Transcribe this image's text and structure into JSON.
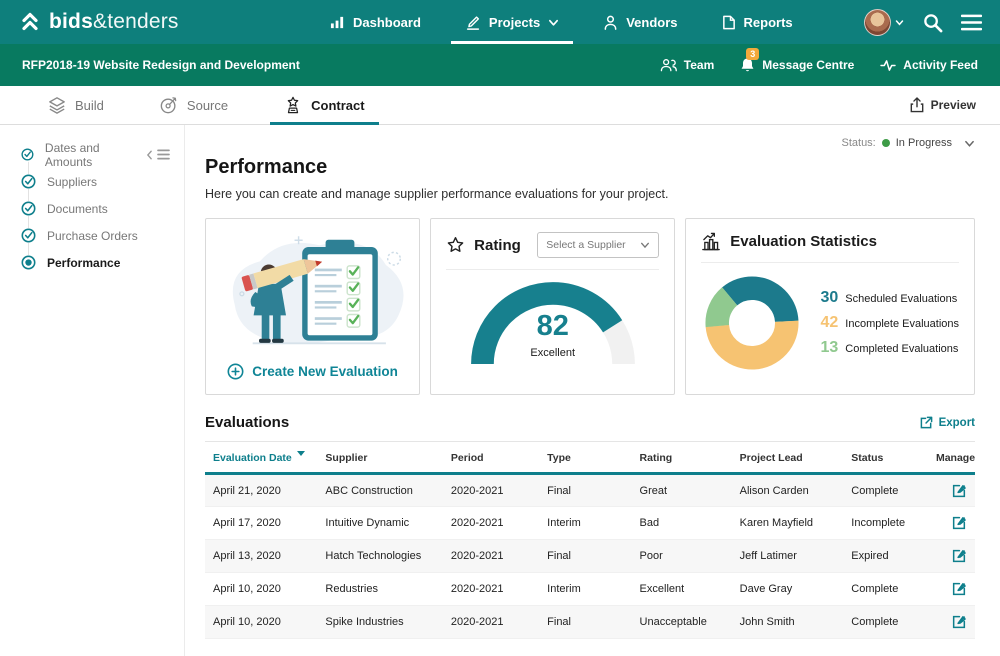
{
  "brand": {
    "name_bold": "bids",
    "name_light": "&tenders"
  },
  "navbar": {
    "items": [
      {
        "label": "Dashboard",
        "icon": "bar-chart-icon",
        "active": false
      },
      {
        "label": "Projects",
        "icon": "pencil-icon",
        "active": true
      },
      {
        "label": "Vendors",
        "icon": "person-icon",
        "active": false
      },
      {
        "label": "Reports",
        "icon": "document-icon",
        "active": false
      }
    ]
  },
  "subnav": {
    "project_title": "RFP2018-19 Website Redesign and Development",
    "links": [
      {
        "label": "Team",
        "icon": "people-icon"
      },
      {
        "label": "Message Centre",
        "icon": "bell-icon",
        "badge": "3"
      },
      {
        "label": "Activity Feed",
        "icon": "pulse-icon"
      }
    ]
  },
  "tabbar": {
    "tabs": [
      {
        "label": "Build",
        "icon": "layers-icon",
        "active": false
      },
      {
        "label": "Source",
        "icon": "target-icon",
        "active": false
      },
      {
        "label": "Contract",
        "icon": "award-icon",
        "active": true
      }
    ],
    "preview_label": "Preview"
  },
  "status": {
    "label": "Status:",
    "value": "In Progress",
    "color": "#3D9B46"
  },
  "sidebar": {
    "items": [
      {
        "label": "Dates and Amounts",
        "state": "complete"
      },
      {
        "label": "Suppliers",
        "state": "complete"
      },
      {
        "label": "Documents",
        "state": "complete"
      },
      {
        "label": "Purchase Orders",
        "state": "complete"
      },
      {
        "label": "Performance",
        "state": "active"
      }
    ]
  },
  "page": {
    "title": "Performance",
    "description": "Here you can create and manage supplier performance evaluations for your project."
  },
  "cards": {
    "create_evaluation": {
      "label": "Create New Evaluation"
    },
    "rating": {
      "title": "Rating",
      "supplier_dropdown": "Select a Supplier",
      "score": 82,
      "score_label": "Excellent",
      "fill_color": "#17808E",
      "track_color": "#F1F1F1"
    },
    "statistics": {
      "title": "Evaluation Statistics",
      "legend": [
        {
          "value": 30,
          "label": "Scheduled Evaluations",
          "color": "#1C7A8C"
        },
        {
          "value": 42,
          "label": "Incomplete Evaluations",
          "color": "#F6C372"
        },
        {
          "value": 13,
          "label": "Completed Evaluations",
          "color": "#90C98F"
        }
      ]
    }
  },
  "chart_data": [
    {
      "type": "gauge",
      "title": "Rating",
      "value": 82,
      "max": 100,
      "label": "Excellent",
      "color": "#17808E",
      "track_color": "#F1F1F1"
    },
    {
      "type": "pie",
      "donut": true,
      "title": "Evaluation Statistics",
      "categories": [
        "Scheduled Evaluations",
        "Incomplete Evaluations",
        "Completed Evaluations"
      ],
      "values": [
        30,
        42,
        13
      ],
      "colors": [
        "#1C7A8C",
        "#F6C372",
        "#90C98F"
      ],
      "legend_position": "right"
    }
  ],
  "evaluations": {
    "title": "Evaluations",
    "export_label": "Export",
    "columns": [
      "Evaluation Date",
      "Supplier",
      "Period",
      "Type",
      "Rating",
      "Project Lead",
      "Status",
      "Manage"
    ],
    "sorted_column": "Evaluation Date",
    "sort_direction": "desc",
    "rows": [
      {
        "date": "April 21, 2020",
        "supplier": "ABC Construction",
        "period": "2020-2021",
        "type": "Final",
        "rating": "Great",
        "lead": "Alison Carden",
        "status": "Complete"
      },
      {
        "date": "April 17, 2020",
        "supplier": "Intuitive Dynamic",
        "period": "2020-2021",
        "type": "Interim",
        "rating": "Bad",
        "lead": "Karen Mayfield",
        "status": "Incomplete"
      },
      {
        "date": "April 13, 2020",
        "supplier": "Hatch Technologies",
        "period": "2020-2021",
        "type": "Final",
        "rating": "Poor",
        "lead": "Jeff Latimer",
        "status": "Expired"
      },
      {
        "date": "April 10, 2020",
        "supplier": "Redustries",
        "period": "2020-2021",
        "type": "Interim",
        "rating": "Excellent",
        "lead": "Dave Gray",
        "status": "Complete"
      },
      {
        "date": "April 10, 2020",
        "supplier": "Spike Industries",
        "period": "2020-2021",
        "type": "Final",
        "rating": "Unacceptable",
        "lead": "John Smith",
        "status": "Complete"
      }
    ]
  }
}
